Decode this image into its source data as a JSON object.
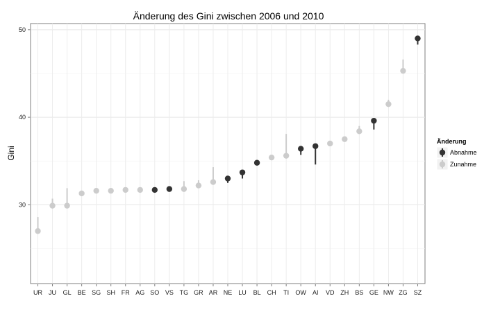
{
  "chart_data": {
    "type": "dot-range",
    "title": "Änderung des Gini zwischen 2006 und 2010",
    "xlabel": "",
    "ylabel": "Gini",
    "ylim": [
      21,
      50.7
    ],
    "yticks": [
      30,
      40,
      50
    ],
    "grid": true,
    "legend": {
      "title": "Änderung",
      "placement": "right",
      "entries": [
        {
          "name": "Abnahme",
          "color": "#333333"
        },
        {
          "name": "Zunahme",
          "color": "#cccccc"
        }
      ]
    },
    "categories": [
      "UR",
      "JU",
      "GL",
      "BE",
      "SG",
      "SH",
      "FR",
      "AG",
      "SO",
      "VS",
      "TG",
      "GR",
      "AR",
      "NE",
      "LU",
      "BL",
      "CH",
      "TI",
      "OW",
      "AI",
      "VD",
      "ZH",
      "BS",
      "GE",
      "NW",
      "ZG",
      "SZ"
    ],
    "points": [
      {
        "cat": "UR",
        "y": 27.0,
        "from": 28.6,
        "group": "Zunahme"
      },
      {
        "cat": "JU",
        "y": 29.9,
        "from": 30.7,
        "group": "Zunahme"
      },
      {
        "cat": "GL",
        "y": 29.9,
        "from": 31.9,
        "group": "Zunahme"
      },
      {
        "cat": "BE",
        "y": 31.3,
        "from": 31.5,
        "group": "Zunahme"
      },
      {
        "cat": "SG",
        "y": 31.6,
        "from": 31.8,
        "group": "Zunahme"
      },
      {
        "cat": "SH",
        "y": 31.6,
        "from": 31.7,
        "group": "Zunahme"
      },
      {
        "cat": "FR",
        "y": 31.7,
        "from": 31.8,
        "group": "Zunahme"
      },
      {
        "cat": "AG",
        "y": 31.7,
        "from": 31.9,
        "group": "Zunahme"
      },
      {
        "cat": "SO",
        "y": 31.7,
        "from": 31.5,
        "group": "Abnahme"
      },
      {
        "cat": "VS",
        "y": 31.8,
        "from": 31.6,
        "group": "Abnahme"
      },
      {
        "cat": "TG",
        "y": 31.8,
        "from": 32.7,
        "group": "Zunahme"
      },
      {
        "cat": "GR",
        "y": 32.2,
        "from": 32.8,
        "group": "Zunahme"
      },
      {
        "cat": "AR",
        "y": 32.6,
        "from": 34.3,
        "group": "Zunahme"
      },
      {
        "cat": "NE",
        "y": 33.0,
        "from": 32.5,
        "group": "Abnahme"
      },
      {
        "cat": "LU",
        "y": 33.7,
        "from": 33.0,
        "group": "Abnahme"
      },
      {
        "cat": "BL",
        "y": 34.8,
        "from": 34.6,
        "group": "Abnahme"
      },
      {
        "cat": "CH",
        "y": 35.4,
        "from": 35.6,
        "group": "Zunahme"
      },
      {
        "cat": "TI",
        "y": 35.6,
        "from": 38.1,
        "group": "Zunahme"
      },
      {
        "cat": "OW",
        "y": 36.4,
        "from": 35.7,
        "group": "Abnahme"
      },
      {
        "cat": "AI",
        "y": 36.7,
        "from": 34.6,
        "group": "Abnahme"
      },
      {
        "cat": "VD",
        "y": 37.0,
        "from": 37.2,
        "group": "Zunahme"
      },
      {
        "cat": "ZH",
        "y": 37.5,
        "from": 37.6,
        "group": "Zunahme"
      },
      {
        "cat": "BS",
        "y": 38.4,
        "from": 39.0,
        "group": "Zunahme"
      },
      {
        "cat": "GE",
        "y": 39.6,
        "from": 38.6,
        "group": "Abnahme"
      },
      {
        "cat": "NW",
        "y": 41.5,
        "from": 42.0,
        "group": "Zunahme"
      },
      {
        "cat": "ZG",
        "y": 45.3,
        "from": 46.6,
        "group": "Zunahme"
      },
      {
        "cat": "SZ",
        "y": 49.0,
        "from": 48.3,
        "group": "Abnahme"
      }
    ]
  }
}
